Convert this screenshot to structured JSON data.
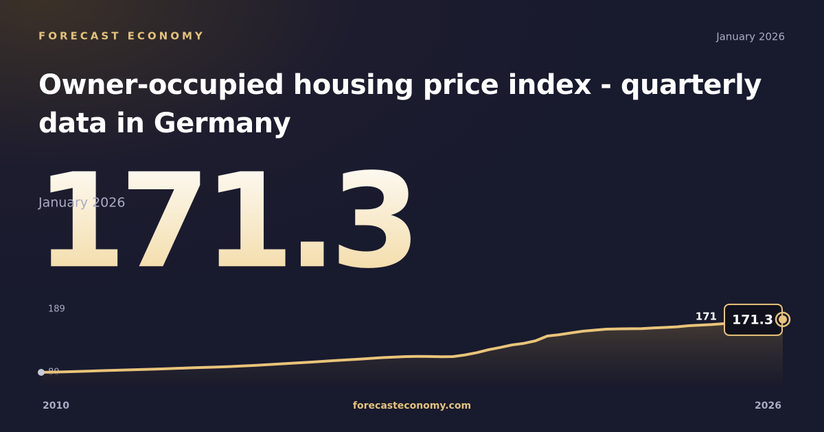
{
  "brand": "FORECAST ECONOMY",
  "site": "forecasteconomy.com",
  "chart_data": {
    "type": "area",
    "title": "Owner-occupied housing price index - quarterly data in Germany",
    "date": "January 2026",
    "color": "#e9c47a",
    "values": [
      80,
      80.5,
      81,
      81.6,
      82.2,
      82.8,
      83.4,
      84,
      84.6,
      85.2,
      85.8,
      86.5,
      87.2,
      87.9,
      88.6,
      89.3,
      90,
      90.9,
      91.8,
      93,
      94.2,
      95.4,
      96.6,
      97.8,
      99,
      100.3,
      101.6,
      102.9,
      104.2,
      105.4,
      106.4,
      107.2,
      107.5,
      107.3,
      107,
      107.2,
      110,
      114,
      119,
      123,
      127.3,
      130,
      134.4,
      142.7,
      145,
      148,
      151,
      152.8,
      154.5,
      155,
      155.2,
      155.4,
      156.5,
      157.5,
      158.5,
      160.4,
      161.5,
      162.5,
      164,
      166,
      168,
      169.5,
      171,
      171.3
    ],
    "xlim": [
      2010,
      2026
    ],
    "xticks": [
      2010,
      2026
    ],
    "ylim": [
      54,
      190
    ],
    "yticks": [
      80,
      189
    ]
  }
}
